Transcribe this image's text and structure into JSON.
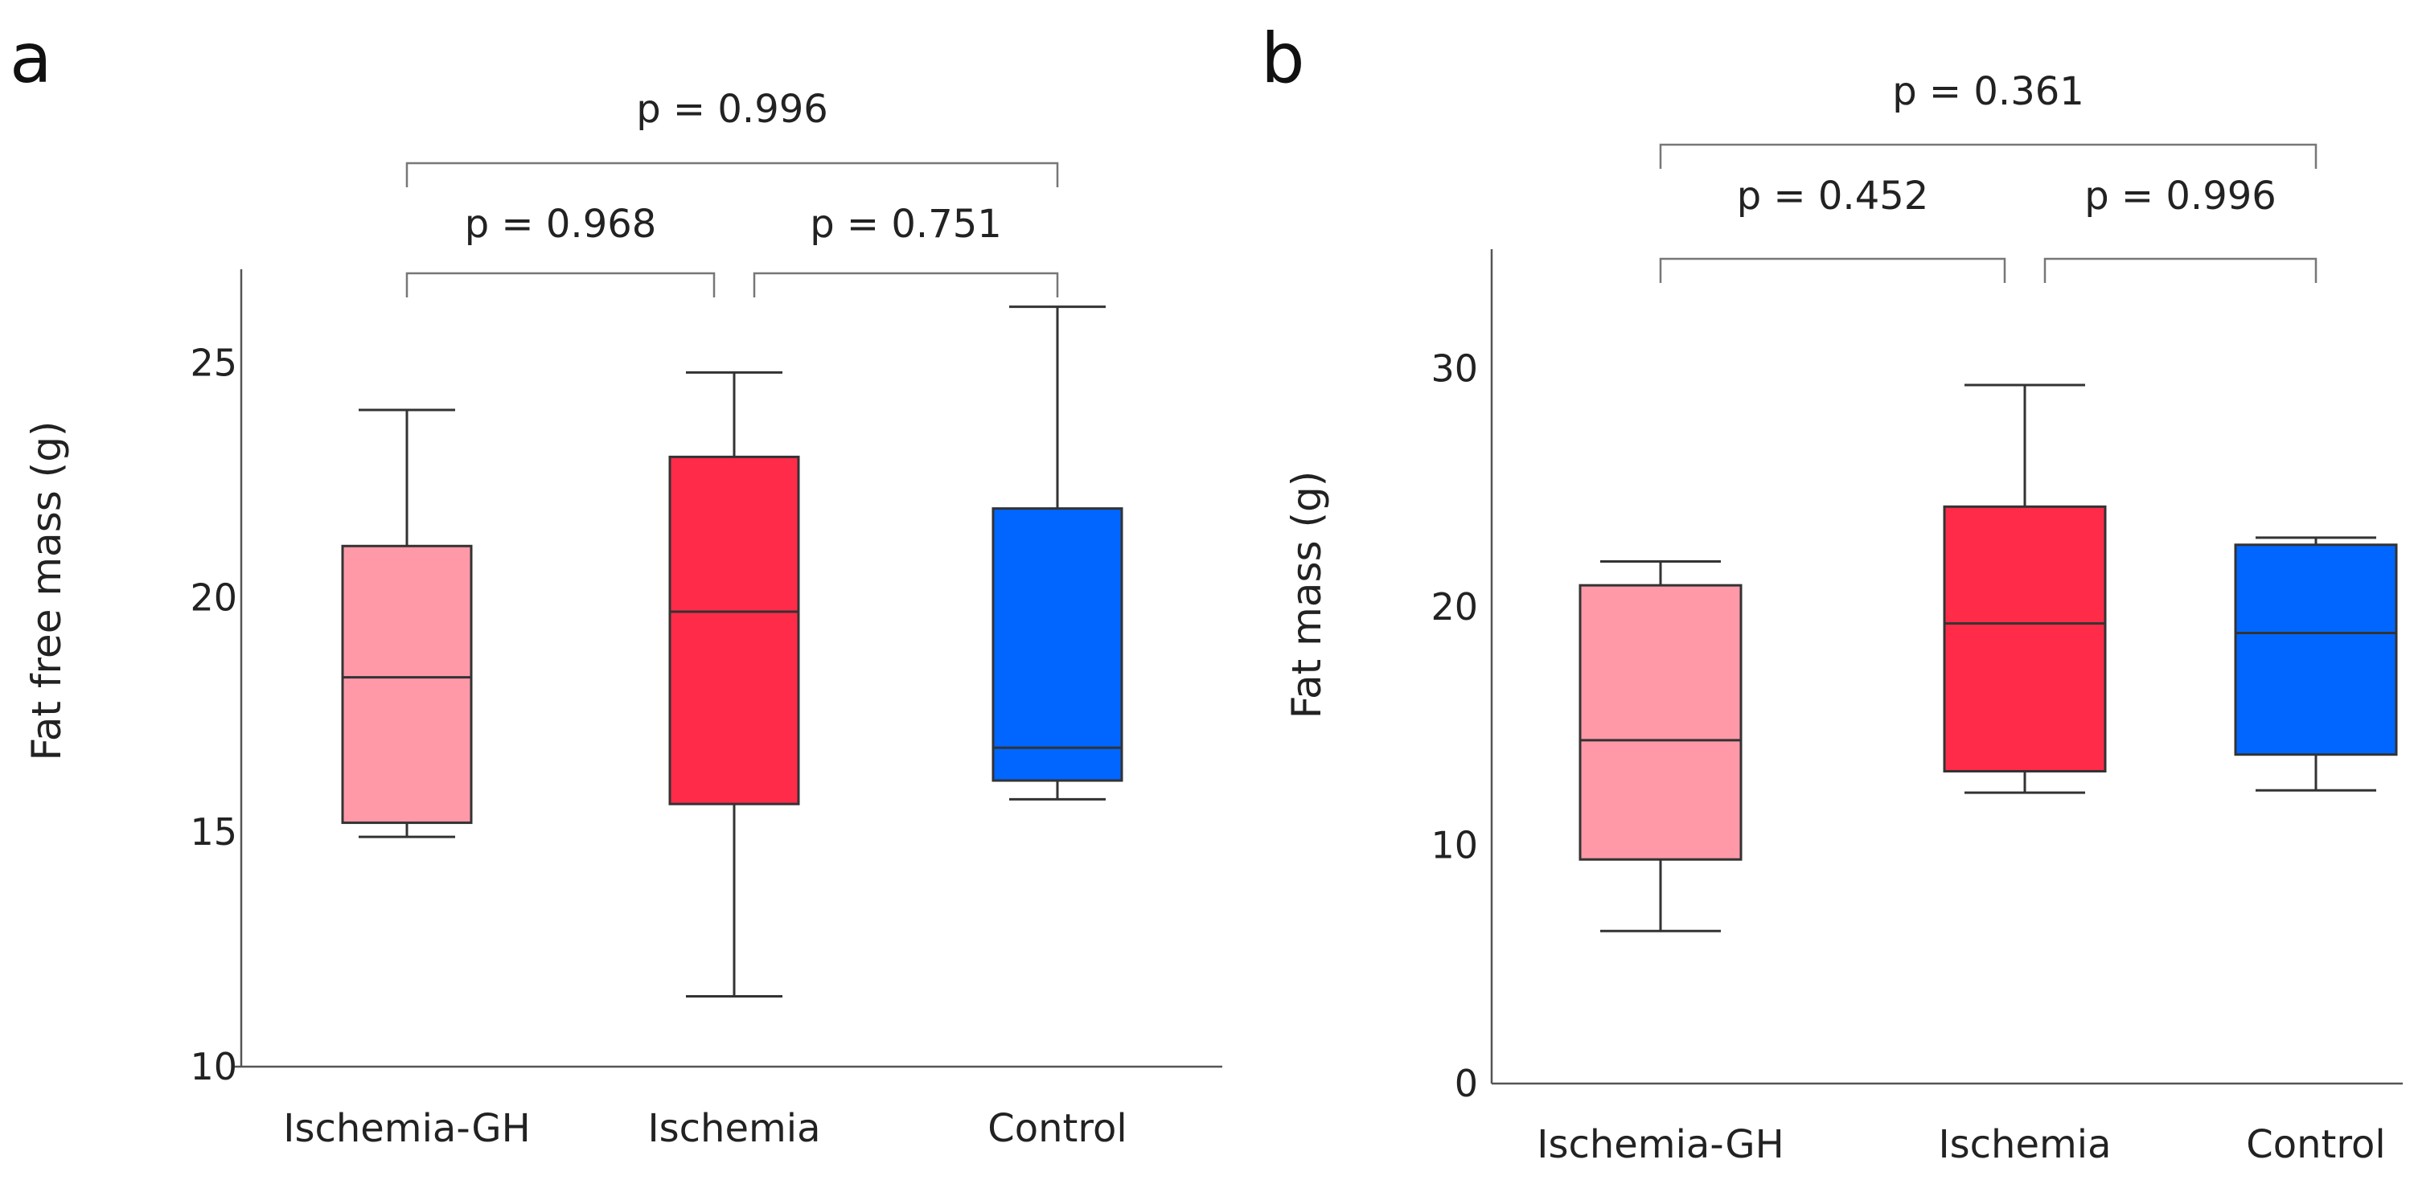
{
  "chart_data": [
    {
      "type": "box",
      "panel": "a",
      "title": "",
      "xlabel": "",
      "ylabel": "Fat free mass (g)",
      "ylim": [
        10,
        27
      ],
      "yticks": [
        10,
        15,
        20,
        25
      ],
      "categories": [
        "Ischemia-GH",
        "Ischemia",
        "Control"
      ],
      "colors": [
        "#ff99a8",
        "#ff2b49",
        "#0066ff"
      ],
      "boxes": [
        {
          "name": "Ischemia-GH",
          "min": 14.9,
          "q1": 15.2,
          "median": 18.3,
          "q3": 21.1,
          "max": 24.0
        },
        {
          "name": "Ischemia",
          "min": 11.5,
          "q1": 15.6,
          "median": 19.7,
          "q3": 23.0,
          "max": 24.8
        },
        {
          "name": "Control",
          "min": 15.7,
          "q1": 16.1,
          "median": 16.8,
          "q3": 21.9,
          "max": 26.2
        }
      ],
      "comparisons": [
        {
          "from": 0,
          "to": 1,
          "label": "p = 0.968"
        },
        {
          "from": 1,
          "to": 2,
          "label": "p = 0.751"
        },
        {
          "from": 0,
          "to": 2,
          "label": "p = 0.996"
        }
      ]
    },
    {
      "type": "box",
      "panel": "b",
      "title": "",
      "xlabel": "",
      "ylabel": "Fat mass (g)",
      "ylim": [
        0,
        35
      ],
      "yticks": [
        0,
        10,
        20,
        30
      ],
      "categories": [
        "Ischemia-GH",
        "Ischemia",
        "Control"
      ],
      "colors": [
        "#ff99a8",
        "#ff2b49",
        "#0066ff"
      ],
      "boxes": [
        {
          "name": "Ischemia-GH",
          "min": 6.4,
          "q1": 9.4,
          "median": 14.4,
          "q3": 20.9,
          "max": 21.9
        },
        {
          "name": "Ischemia",
          "min": 12.2,
          "q1": 13.1,
          "median": 19.3,
          "q3": 24.2,
          "max": 29.3
        },
        {
          "name": "Control",
          "min": 12.3,
          "q1": 13.8,
          "median": 18.9,
          "q3": 22.6,
          "max": 22.9
        }
      ],
      "comparisons": [
        {
          "from": 0,
          "to": 1,
          "label": "p = 0.452"
        },
        {
          "from": 1,
          "to": 2,
          "label": "p = 0.996"
        },
        {
          "from": 0,
          "to": 2,
          "label": "p = 0.361"
        }
      ]
    }
  ]
}
